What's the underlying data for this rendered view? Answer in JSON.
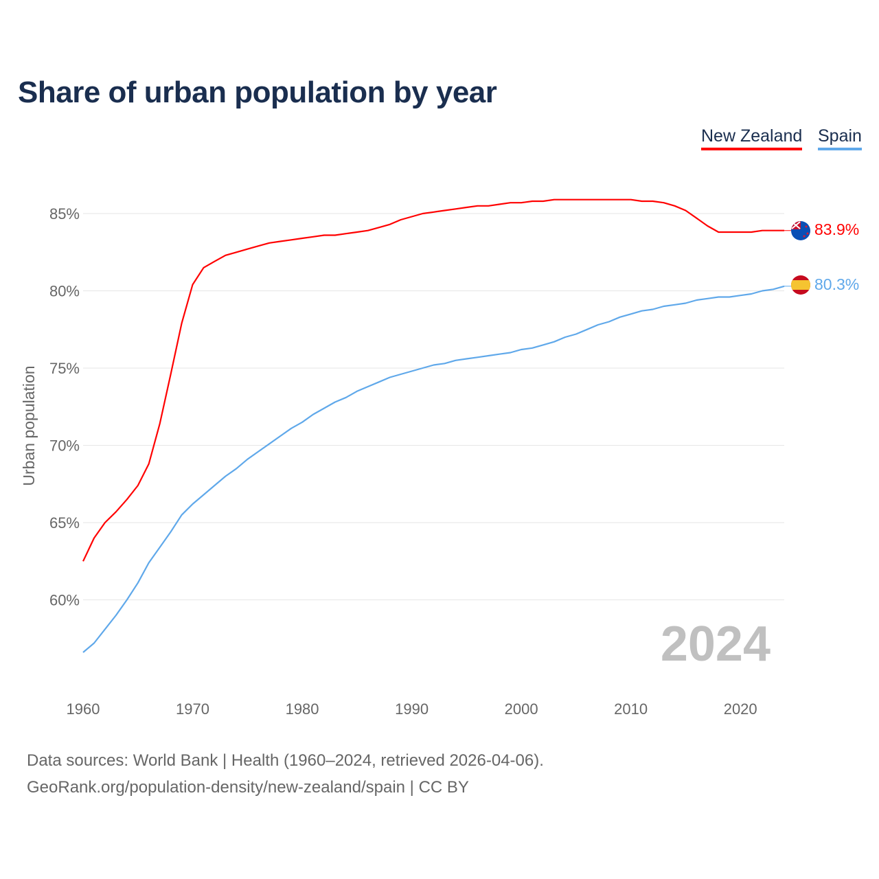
{
  "title": "Share of urban population by year",
  "legend": [
    {
      "name": "New Zealand",
      "color": "#ff0000"
    },
    {
      "name": "Spain",
      "color": "#5fa8ea"
    }
  ],
  "source_lines": [
    "Data sources: World Bank | Health (1960–2024, retrieved 2026-04-06).",
    "GeoRank.org/population-density/new-zealand/spain | CC BY"
  ],
  "year_watermark": "2024",
  "end_labels": {
    "nz": "83.9%",
    "es": "80.3%"
  },
  "chart_data": {
    "type": "line",
    "title": "Share of urban population by year",
    "xlabel": "",
    "ylabel": "Urban population",
    "xlim": [
      1960,
      2024
    ],
    "ylim": [
      55.5,
      86.5
    ],
    "xticks": [
      1960,
      1970,
      1980,
      1990,
      2000,
      2010,
      2020
    ],
    "yticks": [
      60,
      65,
      70,
      75,
      80,
      85
    ],
    "ytick_labels": [
      "60%",
      "65%",
      "70%",
      "75%",
      "80%",
      "85%"
    ],
    "grid": true,
    "legend_position": "top-right",
    "x": [
      1960,
      1961,
      1962,
      1963,
      1964,
      1965,
      1966,
      1967,
      1968,
      1969,
      1970,
      1971,
      1972,
      1973,
      1974,
      1975,
      1976,
      1977,
      1978,
      1979,
      1980,
      1981,
      1982,
      1983,
      1984,
      1985,
      1986,
      1987,
      1988,
      1989,
      1990,
      1991,
      1992,
      1993,
      1994,
      1995,
      1996,
      1997,
      1998,
      1999,
      2000,
      2001,
      2002,
      2003,
      2004,
      2005,
      2006,
      2007,
      2008,
      2009,
      2010,
      2011,
      2012,
      2013,
      2014,
      2015,
      2016,
      2017,
      2018,
      2019,
      2020,
      2021,
      2022,
      2023,
      2024
    ],
    "series": [
      {
        "name": "New Zealand",
        "color": "#ff0000",
        "values": [
          62.5,
          64.0,
          65.0,
          65.7,
          66.5,
          67.4,
          68.8,
          71.4,
          74.6,
          77.9,
          80.4,
          81.5,
          81.9,
          82.3,
          82.5,
          82.7,
          82.9,
          83.1,
          83.2,
          83.3,
          83.4,
          83.5,
          83.6,
          83.6,
          83.7,
          83.8,
          83.9,
          84.1,
          84.3,
          84.6,
          84.8,
          85.0,
          85.1,
          85.2,
          85.3,
          85.4,
          85.5,
          85.5,
          85.6,
          85.7,
          85.7,
          85.8,
          85.8,
          85.9,
          85.9,
          85.9,
          85.9,
          85.9,
          85.9,
          85.9,
          85.9,
          85.8,
          85.8,
          85.7,
          85.5,
          85.2,
          84.7,
          84.2,
          83.8,
          83.8,
          83.8,
          83.8,
          83.9,
          83.9,
          83.9
        ]
      },
      {
        "name": "Spain",
        "color": "#5fa8ea",
        "values": [
          56.6,
          57.2,
          58.1,
          59.0,
          60.0,
          61.1,
          62.4,
          63.4,
          64.4,
          65.5,
          66.2,
          66.8,
          67.4,
          68.0,
          68.5,
          69.1,
          69.6,
          70.1,
          70.6,
          71.1,
          71.5,
          72.0,
          72.4,
          72.8,
          73.1,
          73.5,
          73.8,
          74.1,
          74.4,
          74.6,
          74.8,
          75.0,
          75.2,
          75.3,
          75.5,
          75.6,
          75.7,
          75.8,
          75.9,
          76.0,
          76.2,
          76.3,
          76.5,
          76.7,
          77.0,
          77.2,
          77.5,
          77.8,
          78.0,
          78.3,
          78.5,
          78.7,
          78.8,
          79.0,
          79.1,
          79.2,
          79.4,
          79.5,
          79.6,
          79.6,
          79.7,
          79.8,
          80.0,
          80.1,
          80.3
        ]
      }
    ]
  }
}
